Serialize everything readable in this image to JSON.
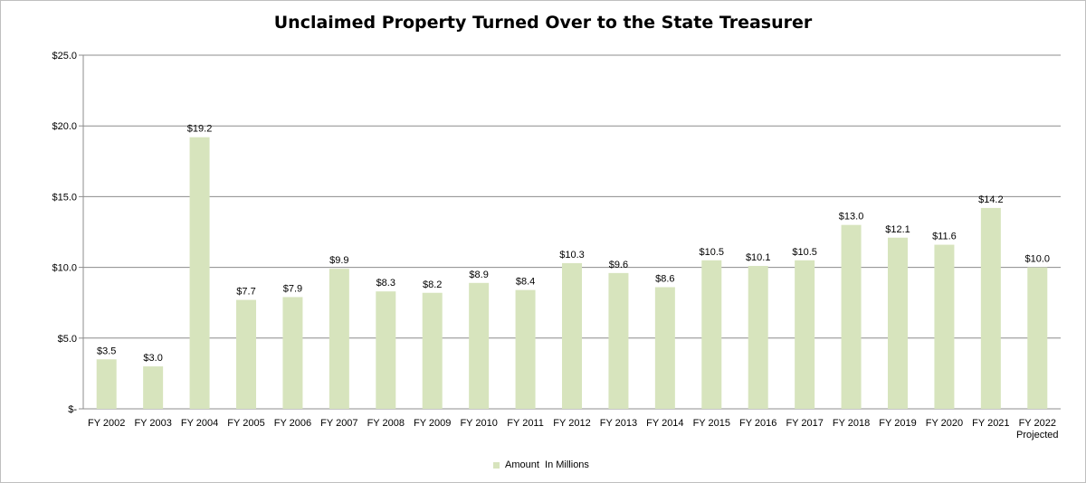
{
  "chart_data": {
    "type": "bar",
    "title": "Unclaimed Property Turned Over to the State Treasurer",
    "xlabel": "",
    "ylabel": "",
    "ylim": [
      0,
      25
    ],
    "yticks": [
      {
        "value": 0,
        "label": "$-"
      },
      {
        "value": 5,
        "label": "$5.0"
      },
      {
        "value": 10,
        "label": "$10.0"
      },
      {
        "value": 15,
        "label": "$15.0"
      },
      {
        "value": 20,
        "label": "$20.0"
      },
      {
        "value": 25,
        "label": "$25.0"
      }
    ],
    "grid": true,
    "legend_position": "bottom",
    "categories": [
      "FY 2002",
      "FY 2003",
      "FY 2004",
      "FY 2005",
      "FY 2006",
      "FY 2007",
      "FY 2008",
      "FY 2009",
      "FY 2010",
      "FY 2011",
      "FY 2012",
      "FY 2013",
      "FY 2014",
      "FY 2015",
      "FY 2016",
      "FY 2017",
      "FY 2018",
      "FY 2019",
      "FY 2020",
      "FY 2021",
      "FY 2022\nProjected"
    ],
    "series": [
      {
        "name": "Amount  In Millions",
        "color": "#d7e4bd",
        "values": [
          3.5,
          3.0,
          19.2,
          7.7,
          7.9,
          9.9,
          8.3,
          8.2,
          8.9,
          8.4,
          10.3,
          9.6,
          8.6,
          10.5,
          10.1,
          10.5,
          13.0,
          12.1,
          11.6,
          14.2,
          10.0
        ],
        "labels": [
          "$3.5",
          "$3.0",
          "$19.2",
          "$7.7",
          "$7.9",
          "$9.9",
          "$8.3",
          "$8.2",
          "$8.9",
          "$8.4",
          "$10.3",
          "$9.6",
          "$8.6",
          "$10.5",
          "$10.1",
          "$10.5",
          "$13.0",
          "$12.1",
          "$11.6",
          "$14.2",
          "$10.0"
        ]
      }
    ]
  }
}
